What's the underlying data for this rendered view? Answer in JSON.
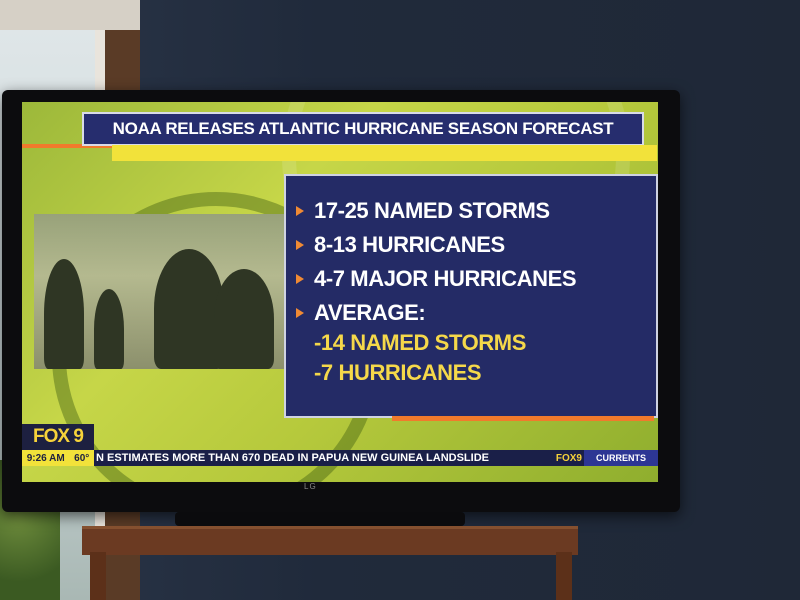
{
  "broadcast": {
    "headline": "NOAA RELEASES ATLANTIC HURRICANE SEASON FORECAST",
    "forecast_items": [
      "17-25 NAMED STORMS",
      "8-13 HURRICANES",
      "4-7 MAJOR HURRICANES",
      "AVERAGE:"
    ],
    "average_items": [
      "-14 NAMED STORMS",
      "-7 HURRICANES"
    ],
    "station_logo": "FOX 9",
    "time": "9:26 AM",
    "temperature": "60°",
    "ticker_text": "N ESTIMATES MORE THAN 670 DEAD IN PAPUA NEW GUINEA LANDSLIDE",
    "ticker_logo": "FOX9",
    "ticker_label": "CURRENTS"
  },
  "tv": {
    "brand": "LG"
  },
  "colors": {
    "panel_navy": "#242b66",
    "accent_yellow": "#f5d84a",
    "accent_orange": "#f17a2c",
    "background_green": "#b6c93c"
  }
}
